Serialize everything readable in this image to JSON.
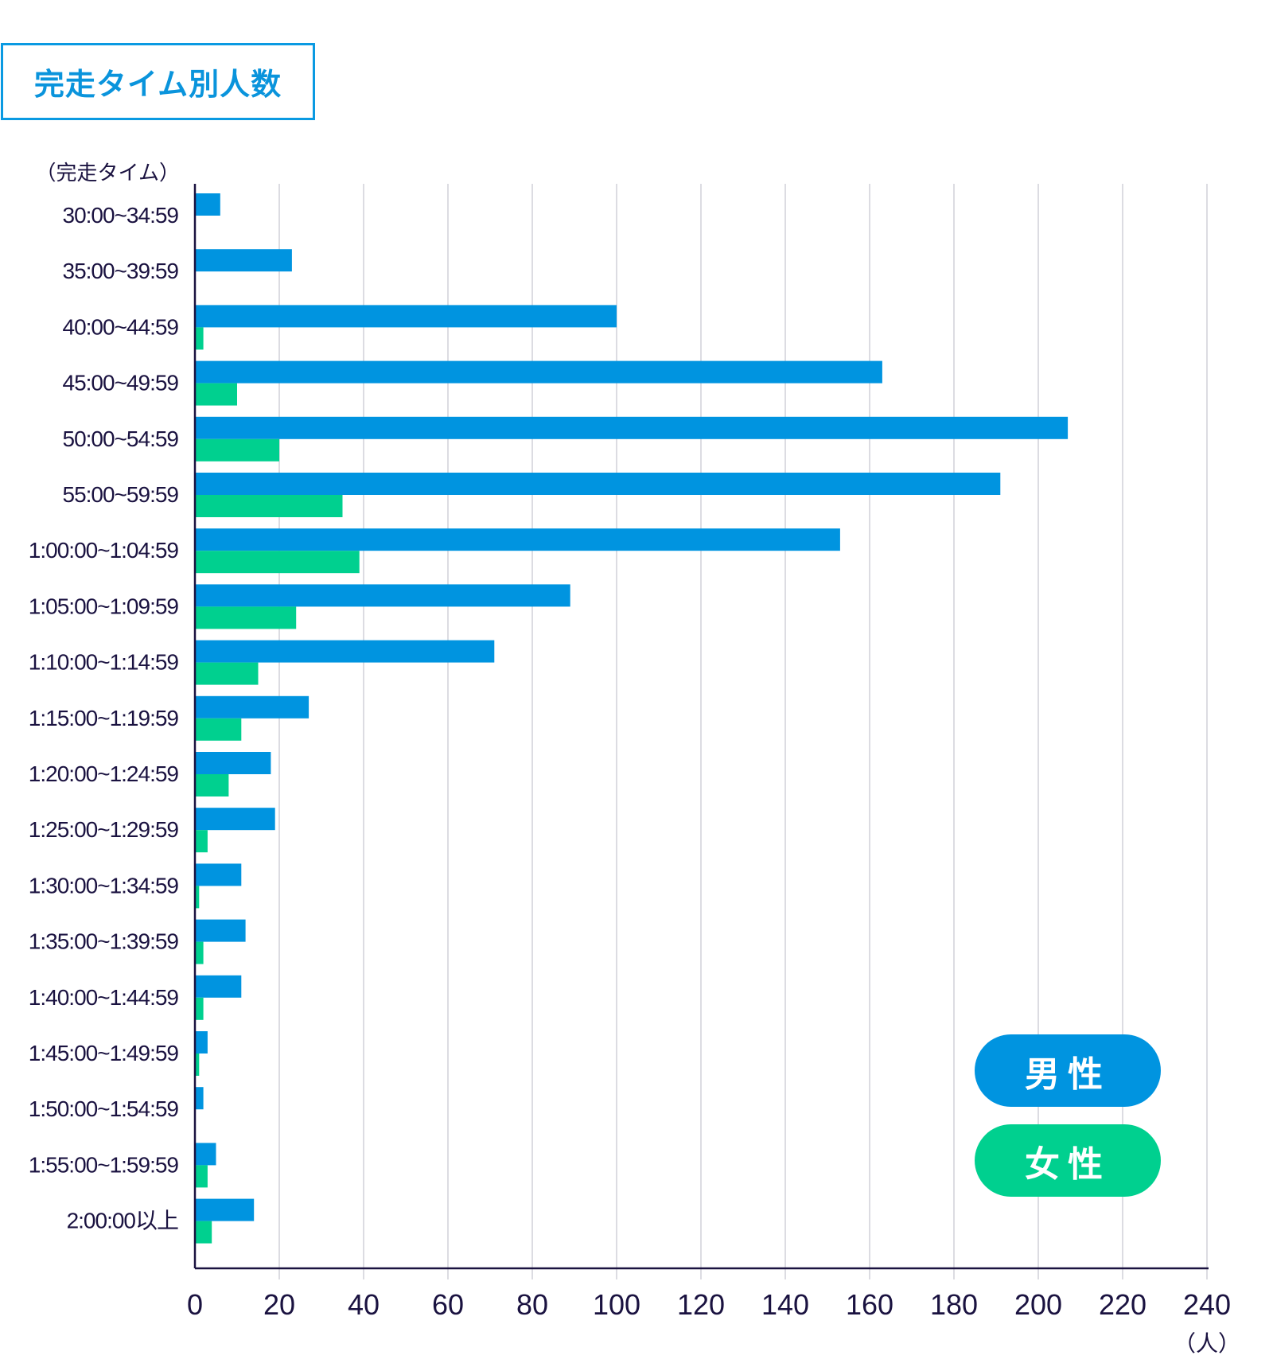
{
  "title": "完走タイム別人数",
  "chart_data": {
    "type": "bar",
    "orientation": "horizontal",
    "title": "完走タイム別人数",
    "ylabel": "（完走タイム）",
    "xlabel": "（人）",
    "xlim": [
      0,
      240
    ],
    "xticks": [
      0,
      20,
      40,
      60,
      80,
      100,
      120,
      140,
      160,
      180,
      200,
      220,
      240
    ],
    "grid": true,
    "legend_position": "bottom-right",
    "categories": [
      "30:00~34:59",
      "35:00~39:59",
      "40:00~44:59",
      "45:00~49:59",
      "50:00~54:59",
      "55:00~59:59",
      "1:00:00~1:04:59",
      "1:05:00~1:09:59",
      "1:10:00~1:14:59",
      "1:15:00~1:19:59",
      "1:20:00~1:24:59",
      "1:25:00~1:29:59",
      "1:30:00~1:34:59",
      "1:35:00~1:39:59",
      "1:40:00~1:44:59",
      "1:45:00~1:49:59",
      "1:50:00~1:54:59",
      "1:55:00~1:59:59",
      "2:00:00以上"
    ],
    "series": [
      {
        "name": "男性",
        "color": "#0094e0",
        "values": [
          6,
          23,
          100,
          163,
          207,
          191,
          153,
          89,
          71,
          27,
          18,
          19,
          11,
          12,
          11,
          3,
          2,
          5,
          14
        ]
      },
      {
        "name": "女性",
        "color": "#00d08f",
        "values": [
          0,
          0,
          2,
          10,
          20,
          35,
          39,
          24,
          15,
          11,
          8,
          3,
          1,
          2,
          2,
          1,
          0,
          3,
          4
        ]
      }
    ]
  }
}
